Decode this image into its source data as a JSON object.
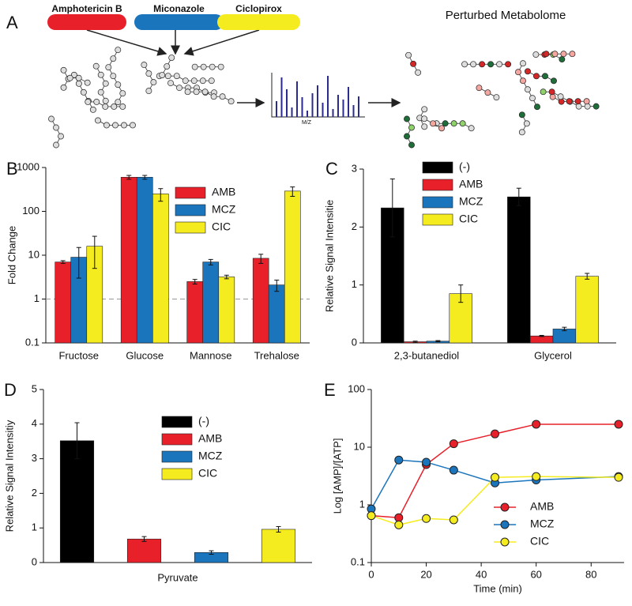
{
  "panel_a": {
    "label": "A",
    "drugs": [
      "Amphotericin B",
      "Miconazole",
      "Ciclopirox"
    ],
    "drug_colors": [
      "#e8202a",
      "#1a75bc",
      "#f5ec1f"
    ],
    "axis_label": "M/Z",
    "result_title": "Perturbed Metabolome"
  },
  "chart_data": [
    {
      "type": "bar",
      "label": "B",
      "ylabel": "Fold Change",
      "yscale": "log",
      "ylim": [
        0.1,
        1000
      ],
      "yticks": [
        0.1,
        1,
        10,
        100,
        1000
      ],
      "hline": 1,
      "categories": [
        "Fructose",
        "Glucose",
        "Mannose",
        "Trehalose"
      ],
      "series": [
        {
          "name": "AMB",
          "color": "#e8202a",
          "values": [
            7,
            600,
            2.5,
            8.5
          ],
          "errors": [
            0.5,
            60,
            0.3,
            2
          ]
        },
        {
          "name": "MCZ",
          "color": "#1a75bc",
          "values": [
            9,
            600,
            7,
            2.1
          ],
          "errors": [
            6,
            60,
            1,
            0.6
          ]
        },
        {
          "name": "CIC",
          "color": "#f5ec1f",
          "values": [
            16,
            250,
            3.2,
            290
          ],
          "errors": [
            11,
            80,
            0.3,
            70
          ]
        }
      ]
    },
    {
      "type": "bar",
      "label": "C",
      "ylabel": "Relative Signal Intensitie",
      "ylim": [
        0,
        3
      ],
      "yticks": [
        0,
        1,
        2,
        3
      ],
      "categories": [
        "2,3-butanediol",
        "Glycerol"
      ],
      "series": [
        {
          "name": "(-)",
          "color": "#000000",
          "values": [
            2.33,
            2.52
          ],
          "errors": [
            0.5,
            0.15
          ]
        },
        {
          "name": "AMB",
          "color": "#e8202a",
          "values": [
            0.02,
            0.12
          ],
          "errors": [
            0.01,
            0.01
          ]
        },
        {
          "name": "MCZ",
          "color": "#1a75bc",
          "values": [
            0.03,
            0.24
          ],
          "errors": [
            0.01,
            0.03
          ]
        },
        {
          "name": "CIC",
          "color": "#f5ec1f",
          "values": [
            0.85,
            1.15
          ],
          "errors": [
            0.15,
            0.05
          ]
        }
      ]
    },
    {
      "type": "bar",
      "label": "D",
      "ylabel": "Relative Signal Intensitiy",
      "ylim": [
        0,
        5
      ],
      "yticks": [
        0,
        1,
        2,
        3,
        4,
        5
      ],
      "categories": [
        "Pyruvate"
      ],
      "series": [
        {
          "name": "(-)",
          "color": "#000000",
          "values": [
            3.52
          ],
          "errors": [
            0.52
          ]
        },
        {
          "name": "AMB",
          "color": "#e8202a",
          "values": [
            0.68
          ],
          "errors": [
            0.07
          ]
        },
        {
          "name": "MCZ",
          "color": "#1a75bc",
          "values": [
            0.29
          ],
          "errors": [
            0.05
          ]
        },
        {
          "name": "CIC",
          "color": "#f5ec1f",
          "values": [
            0.96
          ],
          "errors": [
            0.08
          ]
        }
      ]
    },
    {
      "type": "line",
      "label": "E",
      "ylabel": "Log  [AMP]/[ATP]",
      "xlabel": "Time (min)",
      "yscale": "log",
      "ylim": [
        0.1,
        100
      ],
      "yticks": [
        0.1,
        1,
        10,
        100
      ],
      "xlim": [
        0,
        92
      ],
      "xticks": [
        0,
        20,
        40,
        60,
        80
      ],
      "x": [
        0,
        10,
        20,
        30,
        45,
        60,
        90
      ],
      "series": [
        {
          "name": "AMB",
          "color": "#e8202a",
          "values": [
            0.65,
            0.6,
            5,
            11.5,
            17,
            25,
            25
          ]
        },
        {
          "name": "MCZ",
          "color": "#1a75bc",
          "values": [
            0.85,
            6,
            5.5,
            4,
            2.4,
            2.7,
            3.1
          ]
        },
        {
          "name": "CIC",
          "color": "#f5ec1f",
          "values": [
            0.65,
            0.45,
            0.58,
            0.55,
            3,
            3.1,
            3.0
          ]
        }
      ]
    }
  ]
}
